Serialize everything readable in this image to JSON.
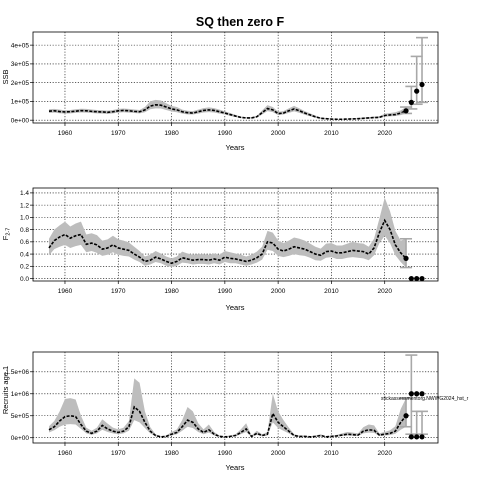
{
  "title": "SQ then zero F",
  "annotation": "stickassessmentorg.NWWG2024_hst_r",
  "chart_data": [
    {
      "type": "line",
      "panel": "ssb",
      "title": "SQ then zero F",
      "xlabel": "Years",
      "ylabel": "SSB",
      "xlim": [
        1954,
        2030
      ],
      "ylim": [
        -15000,
        470000
      ],
      "xticks": [
        1960,
        1970,
        1980,
        1990,
        2000,
        2010,
        2020
      ],
      "yticks": [
        0,
        100000,
        200000,
        300000,
        400000
      ],
      "ytick_labels": [
        "0e+00",
        "1e+05",
        "2e+05",
        "3e+05",
        "4e+05"
      ],
      "grid": true,
      "series": [
        {
          "x": [
            1957,
            1958,
            1959,
            1960,
            1961,
            1962,
            1963,
            1964,
            1965,
            1966,
            1967,
            1968,
            1969,
            1970,
            1971,
            1972,
            1973,
            1974,
            1975,
            1976,
            1977,
            1978,
            1979,
            1980,
            1981,
            1982,
            1983,
            1984,
            1985,
            1986,
            1987,
            1988,
            1989,
            1990,
            1991,
            1992,
            1993,
            1994,
            1995,
            1996,
            1997,
            1998,
            1999,
            2000,
            2001,
            2002,
            2003,
            2004,
            2005,
            2006,
            2007,
            2008,
            2009,
            2010,
            2011,
            2012,
            2013,
            2014,
            2015,
            2016,
            2017,
            2018,
            2019,
            2020,
            2021,
            2022,
            2023,
            2024
          ],
          "values": [
            48000,
            50000,
            46000,
            44000,
            45000,
            48000,
            51000,
            50000,
            47000,
            45000,
            44000,
            42000,
            45000,
            50000,
            52000,
            50000,
            47000,
            45000,
            55000,
            75000,
            82000,
            80000,
            70000,
            60000,
            55000,
            45000,
            40000,
            38000,
            45000,
            52000,
            55000,
            52000,
            45000,
            38000,
            30000,
            22000,
            15000,
            12000,
            12000,
            18000,
            40000,
            62000,
            55000,
            35000,
            38000,
            50000,
            60000,
            50000,
            38000,
            28000,
            18000,
            10000,
            8000,
            6000,
            5000,
            5000,
            6000,
            7000,
            8000,
            10000,
            12000,
            14000,
            15000,
            25000,
            28000,
            30000,
            38000,
            50000
          ],
          "lower": [
            38000,
            40000,
            37000,
            35000,
            36000,
            39000,
            41000,
            40000,
            38000,
            36000,
            35000,
            33000,
            36000,
            40000,
            42000,
            40000,
            38000,
            36000,
            42000,
            58000,
            63000,
            62000,
            54000,
            46000,
            42000,
            35000,
            31000,
            30000,
            35000,
            41000,
            43000,
            41000,
            35000,
            30000,
            23000,
            17000,
            11000,
            9000,
            9000,
            14000,
            30000,
            48000,
            43000,
            27000,
            30000,
            39000,
            47000,
            39000,
            29000,
            21000,
            13000,
            7000,
            5500,
            4000,
            3500,
            3500,
            4000,
            5000,
            5500,
            7000,
            8500,
            10000,
            11000,
            18000,
            20000,
            22000,
            27000,
            36000
          ],
          "upper": [
            58000,
            60000,
            56000,
            53000,
            54000,
            58000,
            61000,
            60000,
            57000,
            54000,
            53000,
            51000,
            54000,
            60000,
            62000,
            60000,
            57000,
            54000,
            70000,
            100000,
            108000,
            105000,
            90000,
            76000,
            70000,
            56000,
            50000,
            48000,
            56000,
            64000,
            68000,
            64000,
            56000,
            47000,
            38000,
            28000,
            19000,
            16000,
            16000,
            23000,
            52000,
            80000,
            70000,
            45000,
            48000,
            63000,
            76000,
            63000,
            48000,
            36000,
            24000,
            14000,
            11000,
            8500,
            7000,
            7000,
            8500,
            9500,
            11000,
            14000,
            16000,
            19000,
            21000,
            34000,
            38000,
            42000,
            52000,
            70000
          ]
        }
      ],
      "projection": {
        "x": [
          2024,
          2025,
          2026,
          2027
        ],
        "values": [
          50000,
          95000,
          155000,
          190000
        ],
        "lower": [
          36000,
          60000,
          85000,
          95000
        ],
        "upper": [
          70000,
          180000,
          340000,
          440000
        ]
      }
    },
    {
      "type": "line",
      "panel": "f",
      "xlabel": "Years",
      "ylabel": "F",
      "ylabel_sub": "2-7",
      "xlim": [
        1954,
        2030
      ],
      "ylim": [
        -0.04,
        1.48
      ],
      "xticks": [
        1960,
        1970,
        1980,
        1990,
        2000,
        2010,
        2020
      ],
      "yticks": [
        0.0,
        0.2,
        0.4,
        0.6,
        0.8,
        1.0,
        1.2,
        1.4
      ],
      "ytick_labels": [
        "0.0",
        "0.2",
        "0.4",
        "0.6",
        "0.8",
        "1.0",
        "1.2",
        "1.4"
      ],
      "grid": true,
      "series": [
        {
          "x": [
            1957,
            1958,
            1959,
            1960,
            1961,
            1962,
            1963,
            1964,
            1965,
            1966,
            1967,
            1968,
            1969,
            1970,
            1971,
            1972,
            1973,
            1974,
            1975,
            1976,
            1977,
            1978,
            1979,
            1980,
            1981,
            1982,
            1983,
            1984,
            1985,
            1986,
            1987,
            1988,
            1989,
            1990,
            1991,
            1992,
            1993,
            1994,
            1995,
            1996,
            1997,
            1998,
            1999,
            2000,
            2001,
            2002,
            2003,
            2004,
            2005,
            2006,
            2007,
            2008,
            2009,
            2010,
            2011,
            2012,
            2013,
            2014,
            2015,
            2016,
            2017,
            2018,
            2019,
            2020,
            2021,
            2022,
            2023,
            2024
          ],
          "values": [
            0.5,
            0.62,
            0.68,
            0.72,
            0.66,
            0.7,
            0.72,
            0.56,
            0.58,
            0.55,
            0.48,
            0.5,
            0.55,
            0.5,
            0.48,
            0.46,
            0.4,
            0.35,
            0.28,
            0.3,
            0.35,
            0.32,
            0.28,
            0.25,
            0.28,
            0.34,
            0.32,
            0.3,
            0.31,
            0.31,
            0.3,
            0.32,
            0.3,
            0.35,
            0.33,
            0.32,
            0.3,
            0.28,
            0.3,
            0.34,
            0.4,
            0.6,
            0.58,
            0.48,
            0.45,
            0.48,
            0.52,
            0.5,
            0.48,
            0.44,
            0.4,
            0.38,
            0.44,
            0.45,
            0.42,
            0.42,
            0.44,
            0.46,
            0.45,
            0.44,
            0.4,
            0.5,
            0.75,
            0.95,
            0.8,
            0.55,
            0.42,
            0.33
          ],
          "lower": [
            0.38,
            0.48,
            0.52,
            0.55,
            0.5,
            0.53,
            0.55,
            0.43,
            0.45,
            0.42,
            0.37,
            0.39,
            0.43,
            0.39,
            0.37,
            0.36,
            0.31,
            0.27,
            0.21,
            0.23,
            0.27,
            0.25,
            0.21,
            0.19,
            0.21,
            0.26,
            0.25,
            0.23,
            0.24,
            0.24,
            0.23,
            0.25,
            0.23,
            0.27,
            0.25,
            0.25,
            0.23,
            0.21,
            0.23,
            0.26,
            0.31,
            0.47,
            0.45,
            0.37,
            0.35,
            0.37,
            0.4,
            0.38,
            0.37,
            0.34,
            0.3,
            0.29,
            0.34,
            0.35,
            0.32,
            0.32,
            0.34,
            0.35,
            0.34,
            0.33,
            0.3,
            0.38,
            0.58,
            0.7,
            0.58,
            0.38,
            0.27,
            0.18
          ],
          "upper": [
            0.65,
            0.8,
            0.87,
            0.93,
            0.85,
            0.9,
            0.93,
            0.72,
            0.74,
            0.71,
            0.62,
            0.64,
            0.7,
            0.64,
            0.62,
            0.59,
            0.52,
            0.45,
            0.36,
            0.39,
            0.45,
            0.41,
            0.36,
            0.33,
            0.36,
            0.44,
            0.41,
            0.39,
            0.4,
            0.4,
            0.39,
            0.41,
            0.39,
            0.45,
            0.43,
            0.41,
            0.39,
            0.36,
            0.39,
            0.44,
            0.52,
            0.78,
            0.75,
            0.62,
            0.58,
            0.62,
            0.67,
            0.65,
            0.62,
            0.57,
            0.52,
            0.49,
            0.57,
            0.58,
            0.54,
            0.54,
            0.57,
            0.6,
            0.58,
            0.57,
            0.52,
            0.65,
            0.98,
            1.32,
            1.1,
            0.78,
            0.62,
            0.65
          ]
        }
      ],
      "projection": {
        "x": [
          2024,
          2025,
          2026,
          2027
        ],
        "values": [
          0.33,
          0.0,
          0.0,
          0.0
        ],
        "lower": [
          0.18,
          0.0,
          0.0,
          0.0
        ],
        "upper": [
          0.65,
          0.0,
          0.0,
          0.0
        ]
      }
    },
    {
      "type": "line",
      "panel": "recruitment",
      "xlabel": "Years",
      "ylabel": "Recruits age 1",
      "xlim": [
        1954,
        2030
      ],
      "ylim": [
        -120000,
        1950000
      ],
      "xticks": [
        1960,
        1970,
        1980,
        1990,
        2000,
        2010,
        2020
      ],
      "yticks": [
        0,
        500000,
        1000000,
        1500000
      ],
      "ytick_labels": [
        "0e+00",
        "5e+05",
        "1e+06",
        "1.5e+06"
      ],
      "grid": true,
      "series": [
        {
          "x": [
            1957,
            1958,
            1959,
            1960,
            1961,
            1962,
            1963,
            1964,
            1965,
            1966,
            1967,
            1968,
            1969,
            1970,
            1971,
            1972,
            1973,
            1974,
            1975,
            1976,
            1977,
            1978,
            1979,
            1980,
            1981,
            1982,
            1983,
            1984,
            1985,
            1986,
            1987,
            1988,
            1989,
            1990,
            1991,
            1992,
            1993,
            1994,
            1995,
            1996,
            1997,
            1998,
            1999,
            2000,
            2001,
            2002,
            2003,
            2004,
            2005,
            2006,
            2007,
            2008,
            2009,
            2010,
            2011,
            2012,
            2013,
            2014,
            2015,
            2016,
            2017,
            2018,
            2019,
            2020,
            2021,
            2022,
            2023,
            2024
          ],
          "values": [
            180000,
            250000,
            380000,
            480000,
            500000,
            480000,
            300000,
            150000,
            100000,
            150000,
            280000,
            200000,
            150000,
            120000,
            150000,
            250000,
            700000,
            600000,
            350000,
            150000,
            50000,
            20000,
            30000,
            80000,
            120000,
            250000,
            400000,
            350000,
            200000,
            120000,
            180000,
            80000,
            30000,
            20000,
            30000,
            50000,
            120000,
            200000,
            30000,
            100000,
            50000,
            80000,
            550000,
            350000,
            250000,
            150000,
            50000,
            30000,
            30000,
            20000,
            30000,
            50000,
            20000,
            30000,
            40000,
            60000,
            80000,
            70000,
            60000,
            150000,
            180000,
            170000,
            60000,
            80000,
            100000,
            150000,
            350000,
            500000
          ],
          "lower": [
            120000,
            170000,
            250000,
            300000,
            310000,
            300000,
            200000,
            100000,
            65000,
            100000,
            180000,
            130000,
            100000,
            80000,
            100000,
            160000,
            400000,
            350000,
            220000,
            100000,
            32000,
            13000,
            20000,
            52000,
            80000,
            160000,
            250000,
            220000,
            130000,
            80000,
            115000,
            52000,
            20000,
            13000,
            20000,
            32000,
            78000,
            130000,
            20000,
            65000,
            32000,
            52000,
            350000,
            220000,
            160000,
            100000,
            32000,
            20000,
            20000,
            13000,
            20000,
            32000,
            13000,
            20000,
            26000,
            39000,
            52000,
            45000,
            39000,
            100000,
            115000,
            110000,
            39000,
            52000,
            60000,
            90000,
            180000,
            250000
          ],
          "upper": [
            260000,
            380000,
            600000,
            880000,
            900000,
            870000,
            500000,
            230000,
            160000,
            230000,
            420000,
            320000,
            230000,
            190000,
            230000,
            380000,
            1350000,
            1250000,
            600000,
            240000,
            80000,
            32000,
            50000,
            130000,
            190000,
            400000,
            700000,
            600000,
            330000,
            190000,
            300000,
            130000,
            50000,
            32000,
            50000,
            80000,
            190000,
            330000,
            50000,
            160000,
            80000,
            130000,
            1000000,
            600000,
            400000,
            230000,
            80000,
            50000,
            50000,
            32000,
            50000,
            80000,
            32000,
            50000,
            65000,
            100000,
            130000,
            115000,
            100000,
            240000,
            300000,
            280000,
            100000,
            130000,
            170000,
            260000,
            650000,
            900000
          ]
        }
      ],
      "projection": {
        "x": [
          2024,
          2025,
          2026,
          2027
        ],
        "values": [
          500000,
          1000000,
          1000000,
          1000000
        ],
        "lower": [
          250000,
          80000,
          80000,
          80000
        ],
        "upper": [
          900000,
          1880000,
          600000,
          600000
        ]
      },
      "extra_points": {
        "x": [
          2025,
          2026,
          2027
        ],
        "values": [
          20000,
          20000,
          20000
        ]
      }
    }
  ]
}
